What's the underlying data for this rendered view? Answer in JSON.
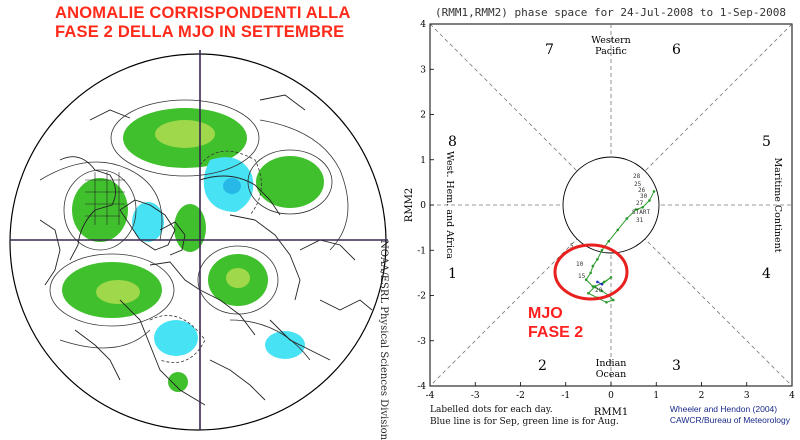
{
  "left": {
    "title_line1": "ANOMALIE CORRISPONDENTI ALLA",
    "title_line2": "FASE 2 DELLA MJO IN SETTEMBRE",
    "credit": "NOAA/ESRL Physical Sciences Division",
    "colors": {
      "title": "#ff2a1a",
      "positive": "#41c02e",
      "positive_core": "#9fd84a",
      "negative": "#47e2f4"
    }
  },
  "right": {
    "title": "(RMM1,RMM2) phase space for 24-Jul-2008 to  1-Sep-2008",
    "xlabel": "RMM1",
    "ylabel": "RMM2",
    "x_ticks": [
      "-4",
      "-3",
      "-2",
      "-1",
      "0",
      "1",
      "2",
      "3",
      "4"
    ],
    "y_ticks": [
      "4",
      "3",
      "2",
      "1",
      "0",
      "-1",
      "-2",
      "-3",
      "-4"
    ],
    "phase_numbers": [
      "7",
      "6",
      "8",
      "5",
      "1",
      "4",
      "2",
      "3"
    ],
    "regions": {
      "top": [
        "Western",
        "Pacific"
      ],
      "bottom": [
        "Indian",
        "Ocean"
      ],
      "left": "West. Hem. and Africa",
      "right": "Maritime Continent"
    },
    "annotation_line1": "MJO",
    "annotation_line2": "FASE 2",
    "legend_line1": "Labelled dots for each day.",
    "legend_line2": "Blue line is for Sep, green line is for Aug.",
    "credit_line1": "Wheeler and Hendon (2004)",
    "credit_line2": "CAWCR/Bureau of Meteorology",
    "day_labels": [
      "25",
      "26",
      "27",
      "28",
      "29",
      "30",
      "31",
      "1",
      "5",
      "10",
      "15",
      "20",
      "START"
    ],
    "colors": {
      "green_line": "#2a9a2a",
      "blue_line": "#2030c0",
      "highlight": "#e82020"
    }
  },
  "chart_data": {
    "type": "line",
    "title": "(RMM1,RMM2) phase space for 24-Jul-2008 to  1-Sep-2008",
    "xlabel": "RMM1",
    "ylabel": "RMM2",
    "xlim": [
      -4,
      4
    ],
    "ylim": [
      -4,
      4
    ],
    "grid": false,
    "series": [
      {
        "x": [
          0.95,
          0.85,
          0.7,
          0.55,
          0.35,
          0.15,
          -0.05,
          -0.2,
          -0.3,
          -0.4,
          -0.45,
          -0.55,
          -0.4,
          -0.2,
          -0.05,
          0.05,
          -0.1,
          -0.3,
          -0.5,
          -0.35,
          -0.15,
          0.0,
          -0.2
        ],
        "y": [
          0.3,
          0.1,
          -0.05,
          -0.1,
          -0.3,
          -0.55,
          -0.8,
          -1.0,
          -1.2,
          -1.35,
          -1.5,
          -1.65,
          -1.8,
          -1.9,
          -2.0,
          -2.1,
          -2.15,
          -2.05,
          -1.95,
          -1.8,
          -1.7,
          -1.6,
          -1.75
        ]
      },
      {
        "x": [
          -0.2,
          -0.3
        ],
        "y": [
          -1.75,
          -1.7
        ]
      }
    ]
  }
}
